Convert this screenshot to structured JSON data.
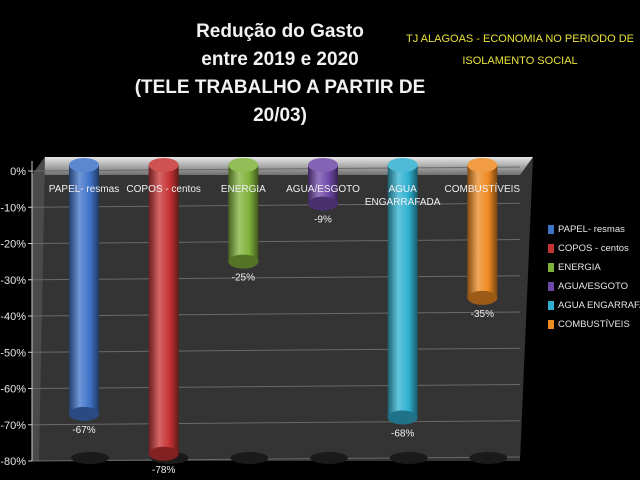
{
  "title": {
    "line1": "Redução do Gasto",
    "line2": "entre  2019  e 2020",
    "line3": "(TELE TRABALHO A PARTIR DE 20/03)"
  },
  "subtitle": {
    "line1": "TJ ALAGOAS - ECONOMIA NO PERIODO DE",
    "line2": "ISOLAMENTO SOCIAL"
  },
  "chart_data": {
    "type": "bar",
    "title": "Redução do Gasto entre 2019 e 2020 (TELE TRABALHO A PARTIR DE 20/03)",
    "subtitle": "TJ ALAGOAS - ECONOMIA NO PERIODO DE ISOLAMENTO SOCIAL",
    "categories": [
      "PAPEL- resmas",
      "COPOS - centos",
      "ENERGIA",
      "AGUA/ESGOTO",
      "AGUA ENGARRAFADA",
      "COMBUSTÍVEIS"
    ],
    "category_labels": [
      [
        "PAPEL- resmas"
      ],
      [
        "COPOS - centos"
      ],
      [
        "ENERGIA"
      ],
      [
        "AGUA/ESGOTO"
      ],
      [
        "AGUA",
        "ENGARRAFADA"
      ],
      [
        "COMBUSTÍVEIS"
      ]
    ],
    "values": [
      -67,
      -78,
      -25,
      -9,
      -68,
      -35
    ],
    "data_labels": [
      "-67%",
      "-78%",
      "-25%",
      "-9%",
      "-68%",
      "-35%"
    ],
    "colors": [
      "#3f73c8",
      "#c63333",
      "#7fb23a",
      "#6e48a8",
      "#2fb0d0",
      "#ee8a22"
    ],
    "ylim": [
      -80,
      0
    ],
    "yticks": [
      "0%",
      "-10%",
      "-20%",
      "-30%",
      "-40%",
      "-50%",
      "-60%",
      "-70%",
      "-80%"
    ],
    "grid": true,
    "legend": {
      "position": "right",
      "entries": [
        "PAPEL- resmas",
        "COPOS - centos",
        "ENERGIA",
        "AGUA/ESGOTO",
        "AGUA ENGARRAFA",
        "COMBUSTÍVEIS"
      ]
    }
  }
}
